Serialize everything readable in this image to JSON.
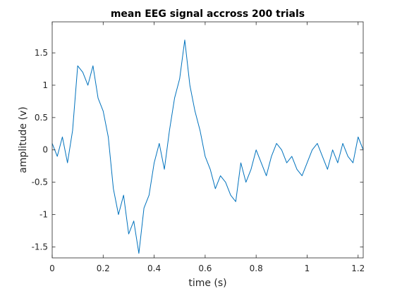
{
  "chart_data": {
    "type": "line",
    "title": "mean EEG signal accross 200 trials",
    "xlabel": "time (s)",
    "ylabel": "amplitude (v)",
    "xlim": [
      0,
      1.22
    ],
    "ylim": [
      -1.67,
      1.98
    ],
    "xticks": [
      0,
      0.2,
      0.4,
      0.6,
      0.8,
      1,
      1.2
    ],
    "xtick_labels": [
      "0",
      "0.2",
      "0.4",
      "0.6",
      "0.8",
      "1",
      "1.2"
    ],
    "yticks": [
      -1.5,
      -1,
      -0.5,
      0,
      0.5,
      1,
      1.5
    ],
    "ytick_labels": [
      "-1.5",
      "-1",
      "-0.5",
      "0",
      "0.5",
      "1",
      "1.5"
    ],
    "grid": false,
    "series": [
      {
        "name": "",
        "color": "#0072BD",
        "x": [
          0,
          0.02,
          0.04,
          0.06,
          0.08,
          0.1,
          0.12,
          0.14,
          0.16,
          0.18,
          0.2,
          0.22,
          0.24,
          0.26,
          0.28,
          0.3,
          0.32,
          0.34,
          0.36,
          0.38,
          0.4,
          0.42,
          0.44,
          0.46,
          0.48,
          0.5,
          0.52,
          0.54,
          0.56,
          0.58,
          0.6,
          0.62,
          0.64,
          0.66,
          0.68,
          0.7,
          0.72,
          0.74,
          0.76,
          0.78,
          0.8,
          0.82,
          0.84,
          0.86,
          0.88,
          0.9,
          0.92,
          0.94,
          0.96,
          0.98,
          1.0,
          1.02,
          1.04,
          1.06,
          1.08,
          1.1,
          1.12,
          1.14,
          1.16,
          1.18,
          1.2,
          1.22
        ],
        "y": [
          0.1,
          -0.1,
          0.2,
          -0.2,
          0.3,
          1.3,
          1.2,
          1.0,
          1.3,
          0.8,
          0.6,
          0.2,
          -0.6,
          -1.0,
          -0.7,
          -1.3,
          -1.1,
          -1.6,
          -0.9,
          -0.7,
          -0.2,
          0.1,
          -0.3,
          0.3,
          0.8,
          1.1,
          1.7,
          1.0,
          0.6,
          0.3,
          -0.1,
          -0.3,
          -0.6,
          -0.4,
          -0.5,
          -0.7,
          -0.8,
          -0.2,
          -0.5,
          -0.3,
          0.0,
          -0.2,
          -0.4,
          -0.1,
          0.1,
          0.0,
          -0.2,
          -0.1,
          -0.3,
          -0.4,
          -0.2,
          0.0,
          0.1,
          -0.1,
          -0.3,
          0.0,
          -0.2,
          0.1,
          -0.1,
          -0.2,
          0.2,
          0.0
        ]
      }
    ]
  }
}
